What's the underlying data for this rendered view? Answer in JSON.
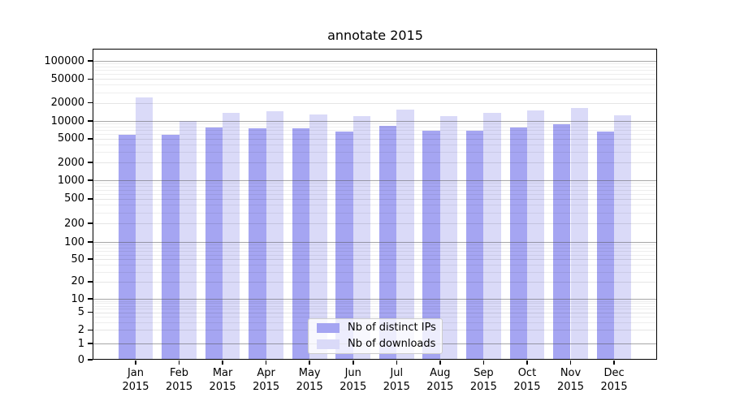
{
  "title": "annotate 2015",
  "colors": {
    "distinct_ips": "#a5a5f2",
    "downloads": "#dadaf8",
    "axis": "#000000",
    "grid_decade": "#a0a0a0",
    "grid_minor": "#ebebeb",
    "legend_border": "#cccccc",
    "background": "#ffffff"
  },
  "legend": {
    "items": [
      {
        "label": "Nb of distinct IPs",
        "color": "#a5a5f2"
      },
      {
        "label": "Nb of downloads",
        "color": "#dadaf8"
      }
    ]
  },
  "y_axis": {
    "ticks": [
      0,
      1,
      2,
      5,
      10,
      20,
      50,
      100,
      200,
      500,
      1000,
      2000,
      5000,
      10000,
      20000,
      50000,
      100000
    ]
  },
  "x_axis": {
    "months": [
      "Jan",
      "Feb",
      "Mar",
      "Apr",
      "May",
      "Jun",
      "Jul",
      "Aug",
      "Sep",
      "Oct",
      "Nov",
      "Dec"
    ],
    "year": "2015"
  },
  "chart_data": {
    "type": "bar",
    "title": "annotate 2015",
    "categories": [
      "Jan 2015",
      "Feb 2015",
      "Mar 2015",
      "Apr 2015",
      "May 2015",
      "Jun 2015",
      "Jul 2015",
      "Aug 2015",
      "Sep 2015",
      "Oct 2015",
      "Nov 2015",
      "Dec 2015"
    ],
    "series": [
      {
        "name": "Nb of distinct IPs",
        "color": "#a5a5f2",
        "values": [
          5900,
          5900,
          7800,
          7500,
          7500,
          6600,
          8300,
          6900,
          6900,
          7800,
          8700,
          6700
        ]
      },
      {
        "name": "Nb of downloads",
        "color": "#dadaf8",
        "values": [
          25000,
          10100,
          13600,
          14500,
          12900,
          11900,
          15600,
          12200,
          13500,
          15100,
          16300,
          12400
        ]
      }
    ],
    "xlabel": "",
    "ylabel": "",
    "yscale": "symlog",
    "ylim": [
      0,
      160000
    ],
    "grid": true,
    "legend_position": "lower center"
  }
}
